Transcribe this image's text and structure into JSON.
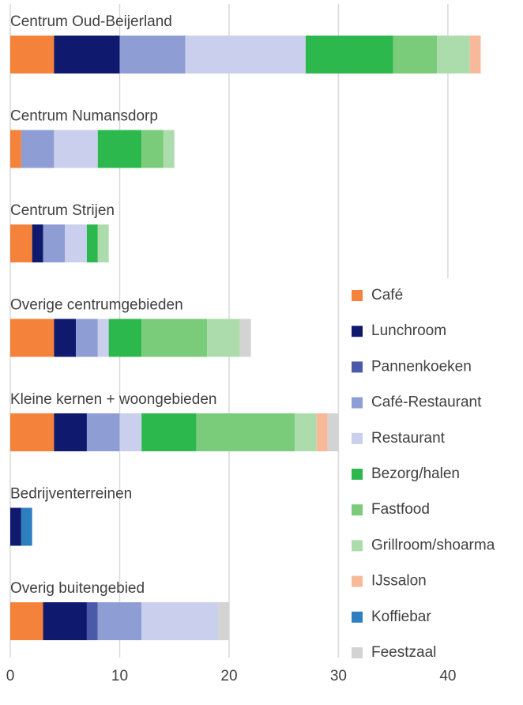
{
  "chart_data": {
    "type": "stacked-barh",
    "categories": [
      "Centrum Oud-Beijerland",
      "Centrum Numansdorp",
      "Centrum Strijen",
      "Overige centrumgebieden",
      "Kleine kernen + woongebieden",
      "Bedrijventerreinen",
      "Overig buitengebied"
    ],
    "series": [
      {
        "name": "Café",
        "color": "#f4823a",
        "values": [
          4,
          1,
          2,
          4,
          4,
          0,
          3
        ]
      },
      {
        "name": "Lunchroom",
        "color": "#0f1a6e",
        "values": [
          6,
          0,
          1,
          2,
          3,
          1,
          4
        ]
      },
      {
        "name": "Pannenkoeken",
        "color": "#4a5aa8",
        "values": [
          0,
          0,
          0,
          0,
          0,
          0,
          1
        ]
      },
      {
        "name": "Café-Restaurant",
        "color": "#8e9dd4",
        "values": [
          6,
          3,
          2,
          2,
          3,
          0,
          4
        ]
      },
      {
        "name": "Restaurant",
        "color": "#c9cfec",
        "values": [
          11,
          4,
          2,
          1,
          2,
          0,
          7
        ]
      },
      {
        "name": "Bezorg/halen",
        "color": "#2db84d",
        "values": [
          8,
          4,
          1,
          3,
          5,
          0,
          0
        ]
      },
      {
        "name": "Fastfood",
        "color": "#7acb7a",
        "values": [
          4,
          2,
          0,
          6,
          9,
          0,
          0
        ]
      },
      {
        "name": "Grillroom/shoarma",
        "color": "#acdcac",
        "values": [
          3,
          1,
          1,
          3,
          2,
          0,
          0
        ]
      },
      {
        "name": "IJssalon",
        "color": "#f8b89a",
        "values": [
          1,
          0,
          0,
          0,
          1,
          0,
          0
        ]
      },
      {
        "name": "Koffiebar",
        "color": "#2e7fc0",
        "values": [
          0,
          0,
          0,
          0,
          0,
          1,
          0
        ]
      },
      {
        "name": "Feestzaal",
        "color": "#d3d3d3",
        "values": [
          0,
          0,
          0,
          1,
          1,
          0,
          1
        ]
      }
    ],
    "xlim": [
      0,
      46
    ],
    "xticks": [
      0,
      10,
      20,
      30,
      40
    ],
    "grid": true,
    "legend": "bottom-right"
  }
}
